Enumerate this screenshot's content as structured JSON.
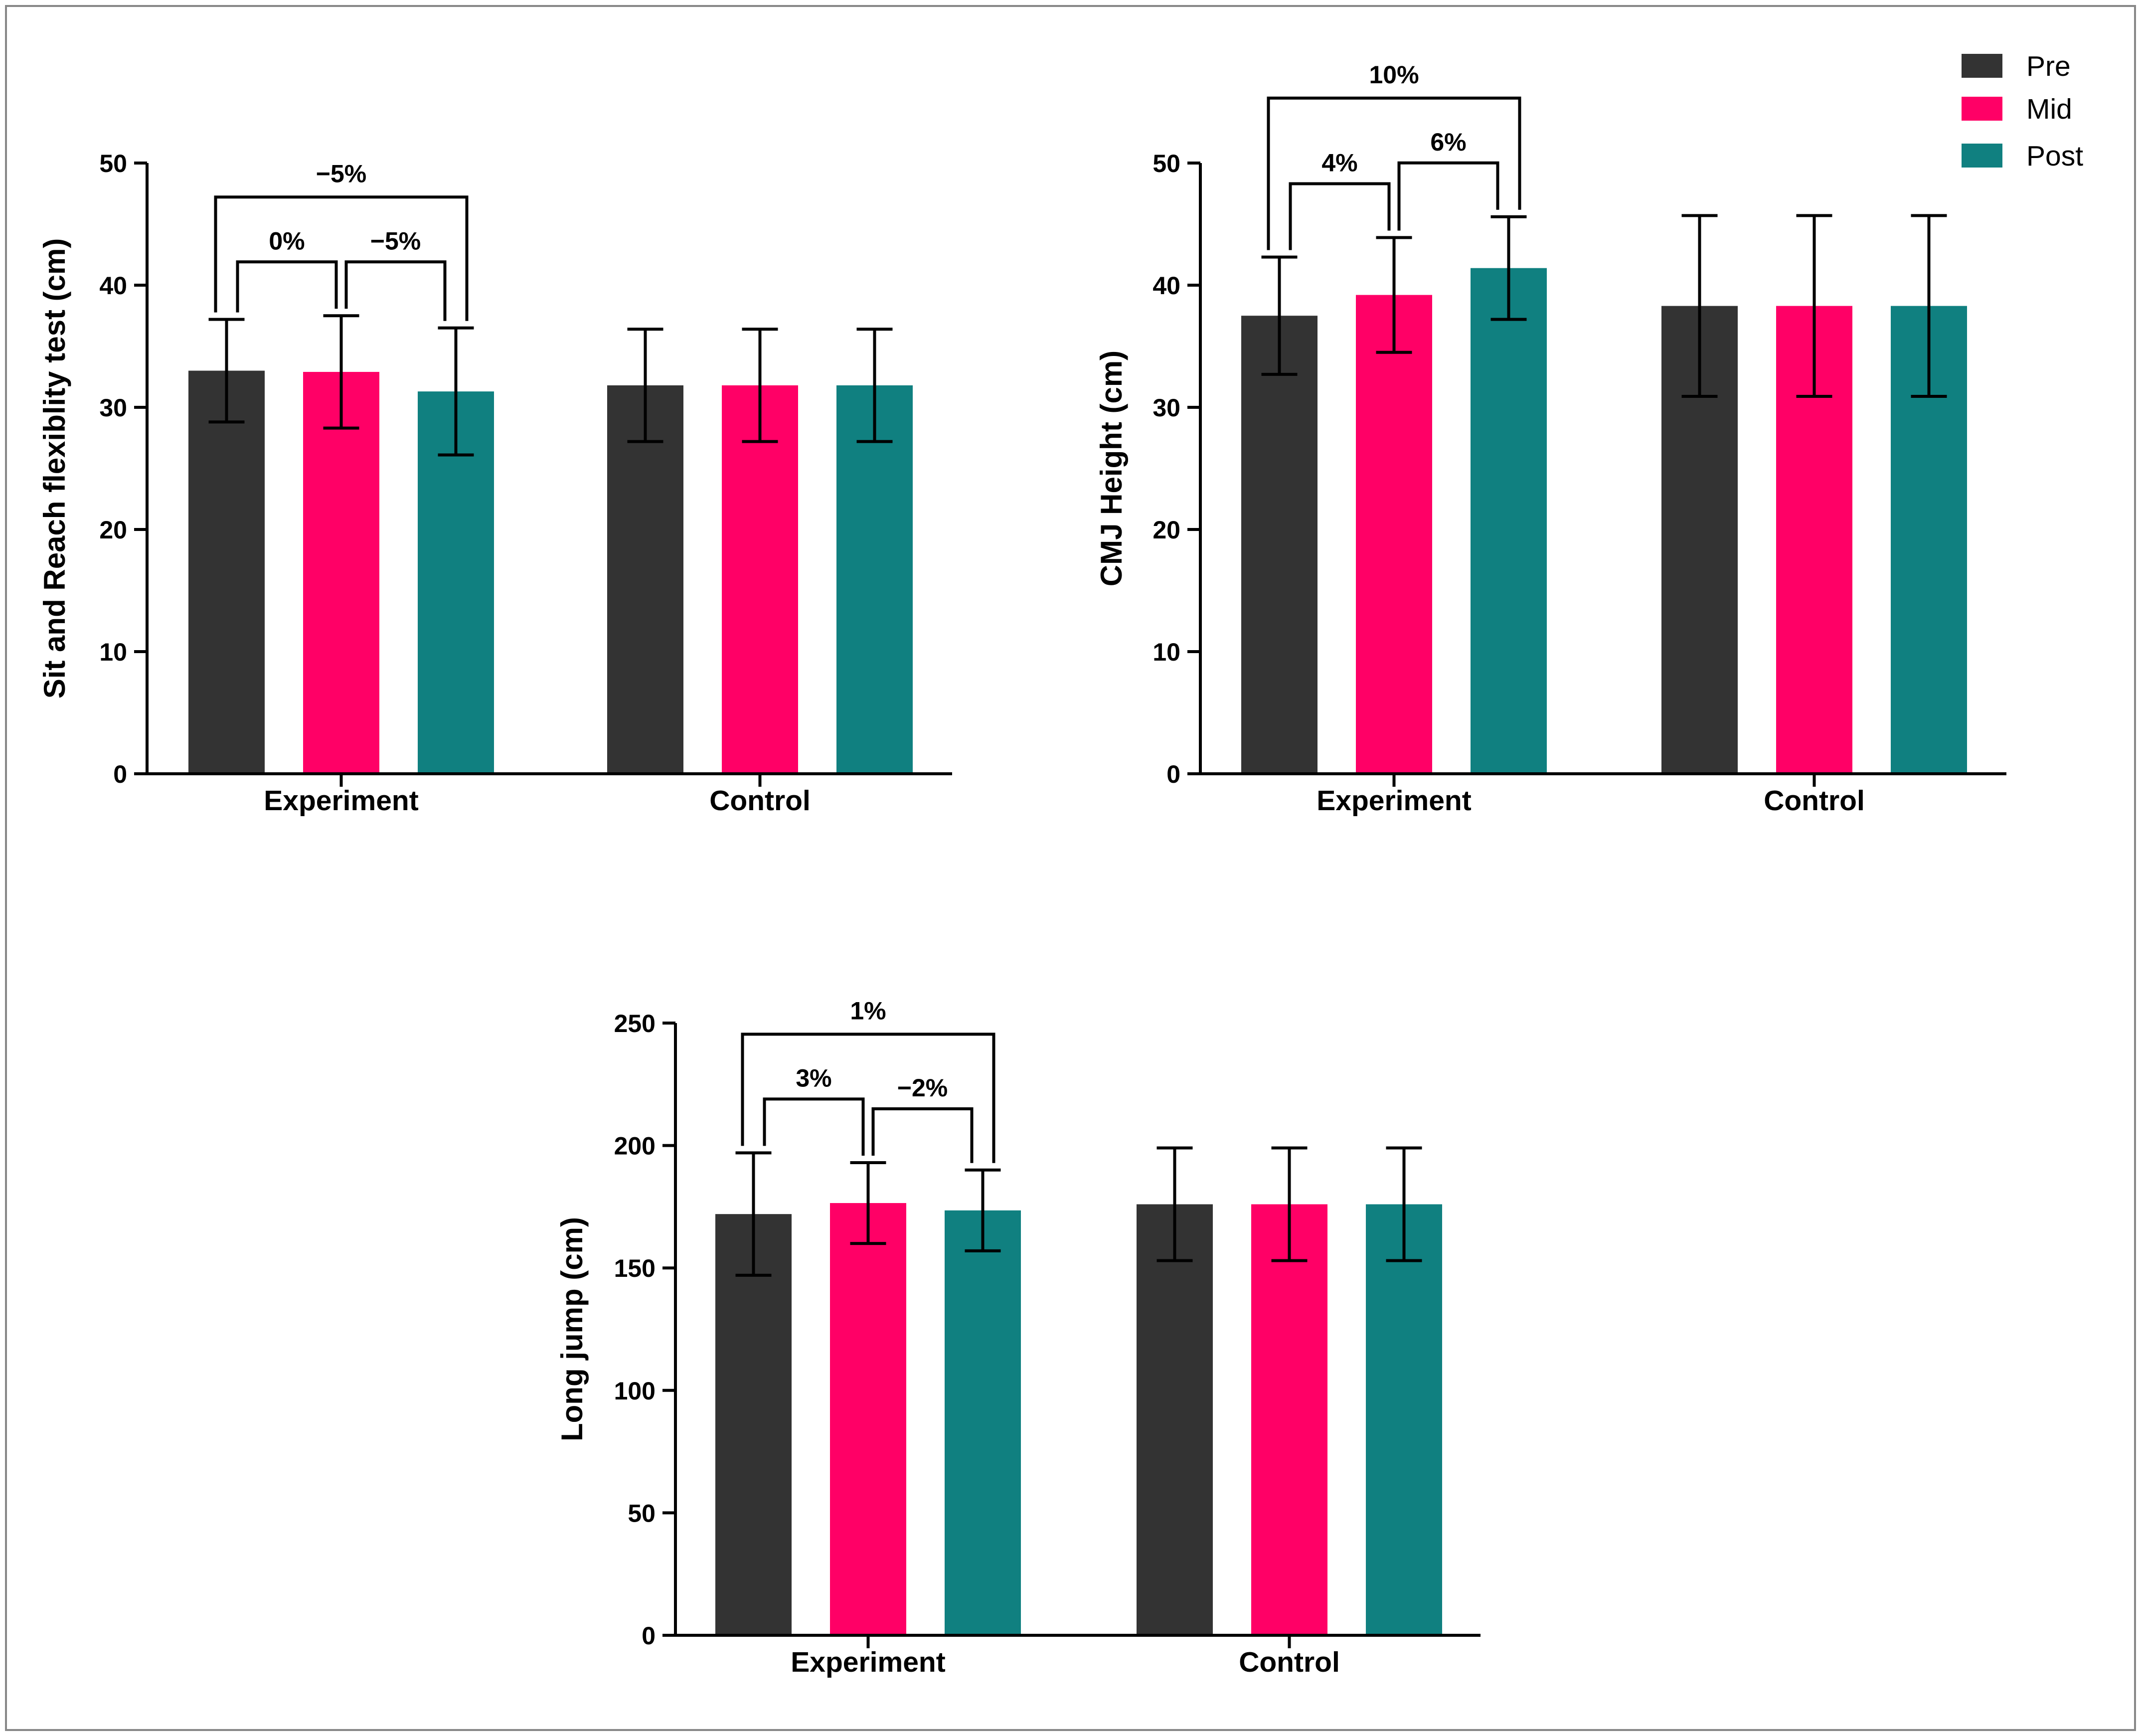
{
  "colors": {
    "Pre": "#333333",
    "Mid": "#ff0066",
    "Post": "#108080",
    "axis": "#000000",
    "frame": "#888888"
  },
  "legend": {
    "items": [
      "Pre",
      "Mid",
      "Post"
    ],
    "placement": "top-right"
  },
  "chart_data": [
    {
      "type": "bar",
      "ylabel": "Sit and Reach flexiblity test (cm)",
      "categories": [
        "Experiment",
        "Control"
      ],
      "ylim": [
        0,
        50
      ],
      "yticks": [
        0,
        10,
        20,
        30,
        40,
        50
      ],
      "series": [
        {
          "name": "Pre",
          "values": [
            33.0,
            31.8
          ],
          "errors": [
            4.2,
            4.6
          ]
        },
        {
          "name": "Mid",
          "values": [
            32.9,
            31.8
          ],
          "errors": [
            4.6,
            4.6
          ]
        },
        {
          "name": "Post",
          "values": [
            31.3,
            31.8
          ],
          "errors": [
            5.2,
            4.6
          ]
        }
      ],
      "annotations": [
        {
          "label": "0%",
          "from": "Pre",
          "to": "Mid"
        },
        {
          "label": "−5%",
          "from": "Mid",
          "to": "Post"
        },
        {
          "label": "−5%",
          "from": "Pre",
          "to": "Post"
        }
      ]
    },
    {
      "type": "bar",
      "ylabel": "CMJ Height (cm)",
      "categories": [
        "Experiment",
        "Control"
      ],
      "ylim": [
        0,
        50
      ],
      "yticks": [
        0,
        10,
        20,
        30,
        40,
        50
      ],
      "series": [
        {
          "name": "Pre",
          "values": [
            37.5,
            38.3
          ],
          "errors": [
            4.8,
            7.4
          ]
        },
        {
          "name": "Mid",
          "values": [
            39.2,
            38.3
          ],
          "errors": [
            4.7,
            7.4
          ]
        },
        {
          "name": "Post",
          "values": [
            41.4,
            38.3
          ],
          "errors": [
            4.2,
            7.4
          ]
        }
      ],
      "annotations": [
        {
          "label": "4%",
          "from": "Pre",
          "to": "Mid"
        },
        {
          "label": "6%",
          "from": "Mid",
          "to": "Post"
        },
        {
          "label": "10%",
          "from": "Pre",
          "to": "Post"
        }
      ]
    },
    {
      "type": "bar",
      "ylabel": "Long jump (cm)",
      "categories": [
        "Experiment",
        "Control"
      ],
      "ylim": [
        0,
        250
      ],
      "yticks": [
        0,
        50,
        100,
        150,
        200,
        250
      ],
      "series": [
        {
          "name": "Pre",
          "values": [
            172,
            176
          ],
          "errors": [
            25,
            23
          ]
        },
        {
          "name": "Mid",
          "values": [
            176.5,
            176
          ],
          "errors": [
            16.5,
            23
          ]
        },
        {
          "name": "Post",
          "values": [
            173.5,
            176
          ],
          "errors": [
            16.5,
            23
          ]
        }
      ],
      "annotations": [
        {
          "label": "3%",
          "from": "Pre",
          "to": "Mid"
        },
        {
          "label": "−2%",
          "from": "Mid",
          "to": "Post"
        },
        {
          "label": "1%",
          "from": "Pre",
          "to": "Post"
        }
      ]
    }
  ]
}
